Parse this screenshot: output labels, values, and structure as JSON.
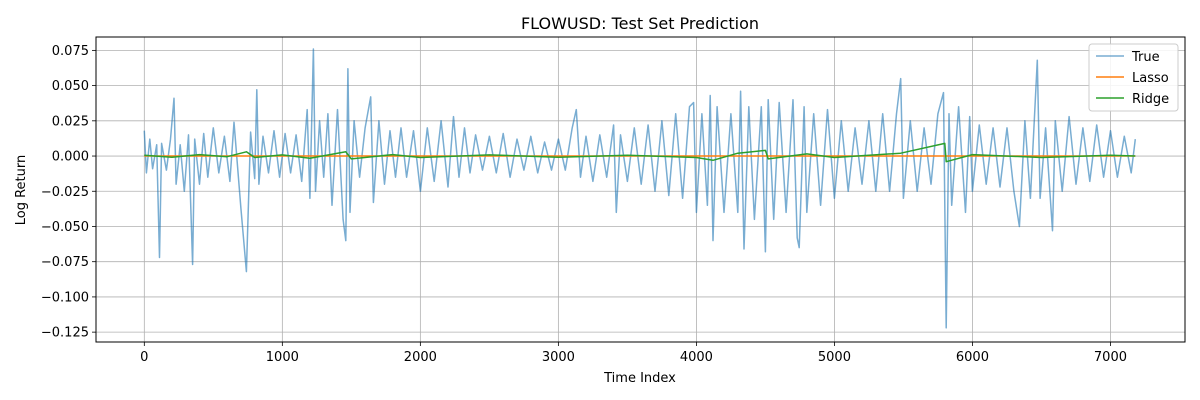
{
  "chart_data": {
    "type": "line",
    "title": "FLOWUSD: Test Set Prediction",
    "xlabel": "Time Index",
    "ylabel": "Log Return",
    "xlim": [
      -350,
      7540
    ],
    "ylim": [
      -0.132,
      0.0845
    ],
    "x_ticks": [
      0,
      1000,
      2000,
      3000,
      4000,
      5000,
      6000,
      7000
    ],
    "x_tick_labels": [
      "0",
      "1000",
      "2000",
      "3000",
      "4000",
      "5000",
      "6000",
      "7000"
    ],
    "y_ticks": [
      0.075,
      0.05,
      0.025,
      0.0,
      -0.025,
      -0.05,
      -0.075,
      -0.1,
      -0.125
    ],
    "y_tick_labels": [
      "0.075",
      "0.050",
      "0.025",
      "0.000",
      "−0.025",
      "−0.050",
      "−0.075",
      "−0.100",
      "−0.125"
    ],
    "grid": true,
    "legend_position": "top-right",
    "series": [
      {
        "name": "True",
        "color": "#1f77b4",
        "opacity": 0.6,
        "points": [
          [
            0,
            0.018
          ],
          [
            15,
            -0.012
          ],
          [
            40,
            0.012
          ],
          [
            60,
            -0.009
          ],
          [
            90,
            0.008
          ],
          [
            110,
            -0.072
          ],
          [
            125,
            0.009
          ],
          [
            160,
            -0.01
          ],
          [
            190,
            0.012
          ],
          [
            215,
            0.041
          ],
          [
            230,
            -0.02
          ],
          [
            260,
            0.008
          ],
          [
            290,
            -0.025
          ],
          [
            320,
            0.015
          ],
          [
            350,
            -0.077
          ],
          [
            365,
            0.012
          ],
          [
            400,
            -0.02
          ],
          [
            430,
            0.016
          ],
          [
            460,
            -0.015
          ],
          [
            500,
            0.02
          ],
          [
            540,
            -0.012
          ],
          [
            580,
            0.014
          ],
          [
            620,
            -0.018
          ],
          [
            650,
            0.024
          ],
          [
            700,
            -0.037
          ],
          [
            740,
            -0.082
          ],
          [
            770,
            0.017
          ],
          [
            800,
            -0.016
          ],
          [
            815,
            0.047
          ],
          [
            830,
            -0.02
          ],
          [
            860,
            0.014
          ],
          [
            900,
            -0.012
          ],
          [
            940,
            0.018
          ],
          [
            980,
            -0.015
          ],
          [
            1020,
            0.016
          ],
          [
            1060,
            -0.012
          ],
          [
            1100,
            0.015
          ],
          [
            1140,
            -0.018
          ],
          [
            1180,
            0.033
          ],
          [
            1200,
            -0.03
          ],
          [
            1225,
            0.076
          ],
          [
            1240,
            -0.025
          ],
          [
            1270,
            0.025
          ],
          [
            1300,
            -0.015
          ],
          [
            1330,
            0.03
          ],
          [
            1360,
            -0.035
          ],
          [
            1400,
            0.033
          ],
          [
            1440,
            -0.045
          ],
          [
            1460,
            -0.06
          ],
          [
            1475,
            0.062
          ],
          [
            1490,
            -0.04
          ],
          [
            1520,
            0.025
          ],
          [
            1560,
            -0.015
          ],
          [
            1600,
            0.02
          ],
          [
            1640,
            0.042
          ],
          [
            1660,
            -0.033
          ],
          [
            1700,
            0.025
          ],
          [
            1740,
            -0.02
          ],
          [
            1780,
            0.018
          ],
          [
            1820,
            -0.015
          ],
          [
            1860,
            0.02
          ],
          [
            1900,
            -0.015
          ],
          [
            1950,
            0.018
          ],
          [
            2000,
            -0.025
          ],
          [
            2050,
            0.02
          ],
          [
            2100,
            -0.018
          ],
          [
            2150,
            0.025
          ],
          [
            2200,
            -0.022
          ],
          [
            2240,
            0.028
          ],
          [
            2280,
            -0.015
          ],
          [
            2320,
            0.02
          ],
          [
            2360,
            -0.012
          ],
          [
            2400,
            0.015
          ],
          [
            2450,
            -0.01
          ],
          [
            2500,
            0.014
          ],
          [
            2550,
            -0.012
          ],
          [
            2600,
            0.016
          ],
          [
            2650,
            -0.015
          ],
          [
            2700,
            0.012
          ],
          [
            2750,
            -0.01
          ],
          [
            2800,
            0.014
          ],
          [
            2850,
            -0.012
          ],
          [
            2900,
            0.01
          ],
          [
            2950,
            -0.01
          ],
          [
            3000,
            0.012
          ],
          [
            3050,
            -0.01
          ],
          [
            3100,
            0.02
          ],
          [
            3130,
            0.033
          ],
          [
            3160,
            -0.015
          ],
          [
            3200,
            0.014
          ],
          [
            3250,
            -0.018
          ],
          [
            3300,
            0.015
          ],
          [
            3350,
            -0.015
          ],
          [
            3400,
            0.022
          ],
          [
            3420,
            -0.04
          ],
          [
            3450,
            0.015
          ],
          [
            3500,
            -0.018
          ],
          [
            3550,
            0.02
          ],
          [
            3600,
            -0.02
          ],
          [
            3650,
            0.022
          ],
          [
            3700,
            -0.025
          ],
          [
            3750,
            0.025
          ],
          [
            3800,
            -0.028
          ],
          [
            3850,
            0.03
          ],
          [
            3900,
            -0.03
          ],
          [
            3950,
            0.035
          ],
          [
            3980,
            0.038
          ],
          [
            4000,
            -0.04
          ],
          [
            4040,
            0.03
          ],
          [
            4080,
            -0.035
          ],
          [
            4100,
            0.043
          ],
          [
            4120,
            -0.06
          ],
          [
            4150,
            0.035
          ],
          [
            4200,
            -0.04
          ],
          [
            4250,
            0.03
          ],
          [
            4300,
            -0.04
          ],
          [
            4320,
            0.046
          ],
          [
            4345,
            -0.066
          ],
          [
            4380,
            0.035
          ],
          [
            4420,
            -0.045
          ],
          [
            4470,
            0.035
          ],
          [
            4500,
            -0.068
          ],
          [
            4520,
            0.04
          ],
          [
            4560,
            -0.045
          ],
          [
            4600,
            0.038
          ],
          [
            4650,
            -0.04
          ],
          [
            4700,
            0.04
          ],
          [
            4730,
            -0.058
          ],
          [
            4745,
            -0.065
          ],
          [
            4780,
            0.035
          ],
          [
            4800,
            -0.04
          ],
          [
            4850,
            0.03
          ],
          [
            4900,
            -0.035
          ],
          [
            4950,
            0.033
          ],
          [
            5000,
            -0.03
          ],
          [
            5050,
            0.025
          ],
          [
            5100,
            -0.025
          ],
          [
            5150,
            0.02
          ],
          [
            5200,
            -0.02
          ],
          [
            5250,
            0.025
          ],
          [
            5300,
            -0.025
          ],
          [
            5350,
            0.03
          ],
          [
            5400,
            -0.025
          ],
          [
            5450,
            0.03
          ],
          [
            5480,
            0.055
          ],
          [
            5500,
            -0.03
          ],
          [
            5550,
            0.025
          ],
          [
            5600,
            -0.025
          ],
          [
            5650,
            0.02
          ],
          [
            5700,
            -0.02
          ],
          [
            5750,
            0.03
          ],
          [
            5790,
            0.045
          ],
          [
            5810,
            -0.122
          ],
          [
            5830,
            0.03
          ],
          [
            5850,
            -0.035
          ],
          [
            5900,
            0.035
          ],
          [
            5950,
            -0.04
          ],
          [
            5980,
            0.028
          ],
          [
            6000,
            -0.025
          ],
          [
            6050,
            0.022
          ],
          [
            6100,
            -0.02
          ],
          [
            6150,
            0.02
          ],
          [
            6200,
            -0.022
          ],
          [
            6250,
            0.02
          ],
          [
            6300,
            -0.025
          ],
          [
            6340,
            -0.05
          ],
          [
            6380,
            0.025
          ],
          [
            6420,
            -0.03
          ],
          [
            6470,
            0.068
          ],
          [
            6490,
            -0.03
          ],
          [
            6530,
            0.02
          ],
          [
            6580,
            -0.053
          ],
          [
            6600,
            0.025
          ],
          [
            6650,
            -0.025
          ],
          [
            6700,
            0.028
          ],
          [
            6750,
            -0.02
          ],
          [
            6800,
            0.02
          ],
          [
            6850,
            -0.018
          ],
          [
            6900,
            0.022
          ],
          [
            6950,
            -0.015
          ],
          [
            7000,
            0.018
          ],
          [
            7050,
            -0.015
          ],
          [
            7100,
            0.014
          ],
          [
            7150,
            -0.012
          ],
          [
            7180,
            0.012
          ]
        ]
      },
      {
        "name": "Lasso",
        "color": "#ff7f0e",
        "opacity": 1,
        "points": [
          [
            0,
            0.0
          ],
          [
            7180,
            0.0
          ]
        ]
      },
      {
        "name": "Ridge",
        "color": "#2ca02c",
        "opacity": 1,
        "points": [
          [
            0,
            0.0005
          ],
          [
            200,
            -0.0008
          ],
          [
            400,
            0.001
          ],
          [
            600,
            -0.0005
          ],
          [
            740,
            0.003
          ],
          [
            800,
            -0.001
          ],
          [
            1000,
            0.0008
          ],
          [
            1200,
            -0.0015
          ],
          [
            1460,
            0.003
          ],
          [
            1500,
            -0.002
          ],
          [
            1800,
            0.001
          ],
          [
            2000,
            -0.001
          ],
          [
            2500,
            0.0008
          ],
          [
            3000,
            -0.0008
          ],
          [
            3500,
            0.0006
          ],
          [
            4000,
            -0.001
          ],
          [
            4120,
            -0.003
          ],
          [
            4300,
            0.002
          ],
          [
            4500,
            0.004
          ],
          [
            4520,
            -0.002
          ],
          [
            4800,
            0.0015
          ],
          [
            5000,
            -0.001
          ],
          [
            5480,
            0.002
          ],
          [
            5800,
            0.009
          ],
          [
            5810,
            -0.004
          ],
          [
            6000,
            0.001
          ],
          [
            6500,
            -0.001
          ],
          [
            7000,
            0.0005
          ],
          [
            7180,
            0.0
          ]
        ]
      }
    ]
  }
}
